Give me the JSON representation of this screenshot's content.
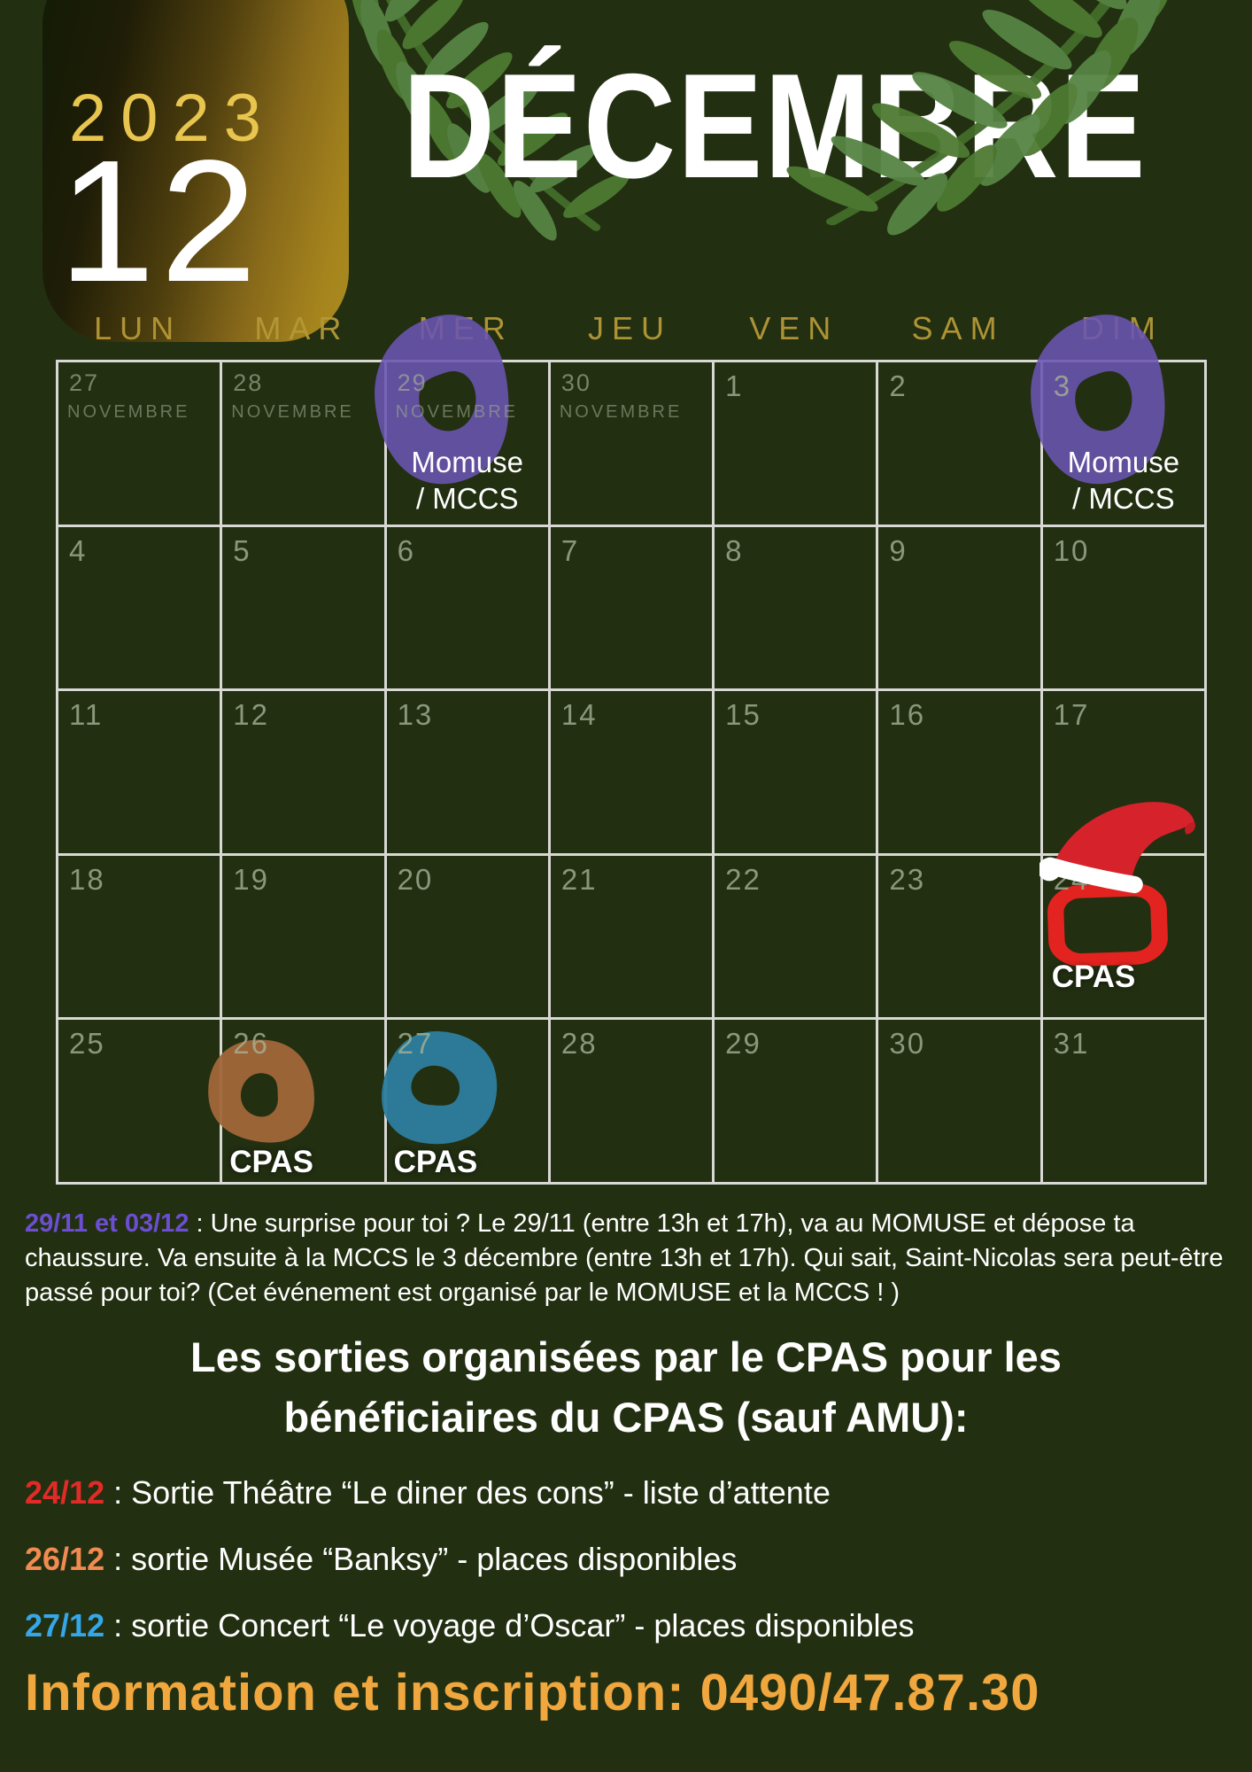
{
  "header": {
    "year": "2023",
    "month_number": "12",
    "month_name": "DÉCEMBRE"
  },
  "weekdays": [
    "LUN",
    "MAR",
    "MER",
    "JEU",
    "VEN",
    "SAM",
    "DIM"
  ],
  "calendar": {
    "cells": [
      {
        "day": "27",
        "sub": "NOVEMBRE"
      },
      {
        "day": "28",
        "sub": "NOVEMBRE"
      },
      {
        "day": "29",
        "sub": "NOVEMBRE",
        "ring": "purple",
        "event": [
          "Momuse",
          "/ MCCS"
        ]
      },
      {
        "day": "30",
        "sub": "NOVEMBRE"
      },
      {
        "day": "1"
      },
      {
        "day": "2"
      },
      {
        "day": "3",
        "ring": "purple",
        "event": [
          "Momuse",
          "/ MCCS"
        ]
      },
      {
        "day": "4"
      },
      {
        "day": "5"
      },
      {
        "day": "6"
      },
      {
        "day": "7"
      },
      {
        "day": "8"
      },
      {
        "day": "9"
      },
      {
        "day": "10"
      },
      {
        "day": "11"
      },
      {
        "day": "12"
      },
      {
        "day": "13"
      },
      {
        "day": "14"
      },
      {
        "day": "15"
      },
      {
        "day": "16"
      },
      {
        "day": "17"
      },
      {
        "day": "18"
      },
      {
        "day": "19"
      },
      {
        "day": "20"
      },
      {
        "day": "21"
      },
      {
        "day": "22"
      },
      {
        "day": "23"
      },
      {
        "day": "24",
        "ring": "red",
        "hat": true,
        "event": [
          "CPAS"
        ]
      },
      {
        "day": "25"
      },
      {
        "day": "26",
        "ring": "brown",
        "event": [
          "CPAS"
        ]
      },
      {
        "day": "27",
        "ring": "teal",
        "event": [
          "CPAS"
        ]
      },
      {
        "day": "28"
      },
      {
        "day": "29"
      },
      {
        "day": "30"
      },
      {
        "day": "31"
      }
    ]
  },
  "surprise_note": {
    "label": "29/11 et 03/12",
    "text": " : Une surprise pour toi ? Le 29/11 (entre 13h et 17h), va au MOMUSE et dépose ta chaussure. Va ensuite à la MCCS le 3 décembre (entre 13h et 17h). Qui sait, Saint-Nicolas sera peut-être passé pour toi?  (Cet événement est organisé par le MOMUSE et la MCCS ! )"
  },
  "sorties": {
    "heading": "Les sorties organisées par le CPAS pour les bénéficiaires du CPAS (sauf AMU):",
    "items": [
      {
        "date": "24/12",
        "color": "#e12b28",
        "text": " : Sortie Théâtre “Le diner des cons” - liste d’attente"
      },
      {
        "date": "26/12",
        "color": "#f18b51",
        "text": " : sortie Musée “Banksy” -  places disponibles"
      },
      {
        "date": "27/12",
        "color": "#35a7e9",
        "text": " : sortie Concert “Le voyage d’Oscar” - places disponibles"
      }
    ]
  },
  "footer": {
    "text": "Information et inscription: 0490/47.87.30"
  },
  "colors": {
    "background": "#222f11",
    "grid_line": "#d8d8d4",
    "weekday_gold": "#b59937",
    "year_gold": "#e7c54e",
    "ring_purple": "#6a55b2",
    "ring_red": "#e2231f",
    "ring_brown": "#a2673a",
    "ring_teal": "#2d7fa0",
    "note_label_purple": "#6c4ed2",
    "footer_amber": "#efa73e"
  }
}
